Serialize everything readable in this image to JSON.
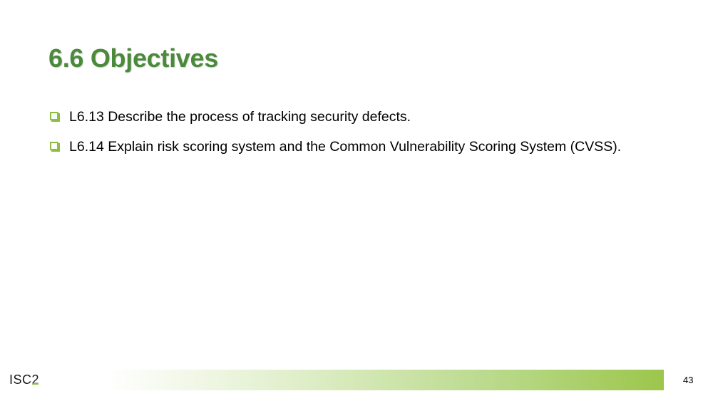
{
  "slide": {
    "title": "6.6 Objectives",
    "objectives": [
      {
        "text": "L6.13 Describe the process of tracking security defects."
      },
      {
        "text": "L6.14 Explain risk scoring system and the Common Vulnerability Scoring System (CVSS)."
      }
    ]
  },
  "footer": {
    "logo_main": "ISC",
    "logo_accent": "2",
    "page_number": "43"
  },
  "colors": {
    "title": "#4a8a3a",
    "bullet": "#8dbf3f",
    "bar_end": "#9cc64b"
  }
}
